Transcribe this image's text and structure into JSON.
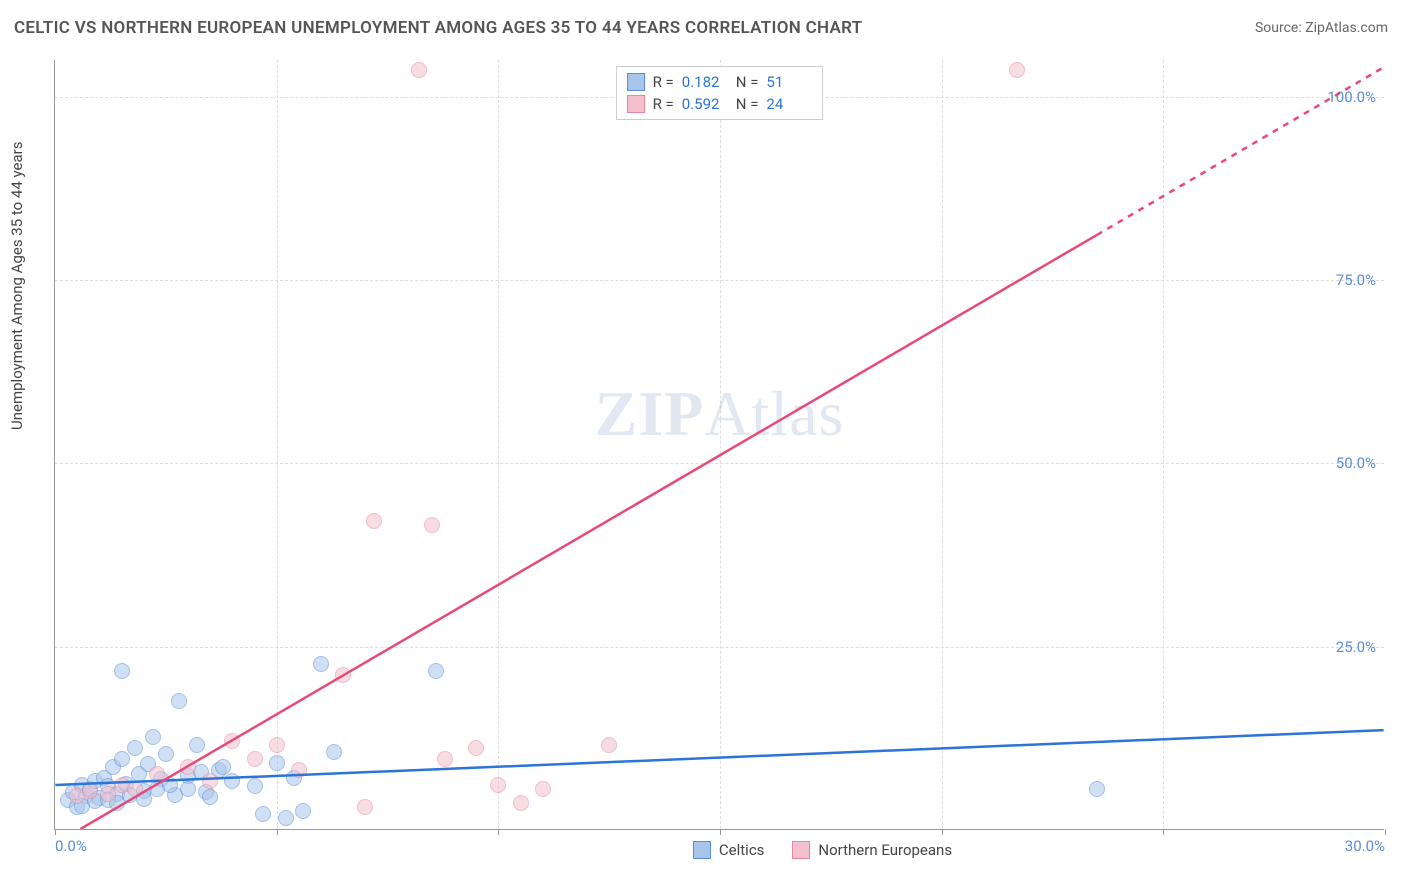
{
  "title": "CELTIC VS NORTHERN EUROPEAN UNEMPLOYMENT AMONG AGES 35 TO 44 YEARS CORRELATION CHART",
  "source": "Source: ZipAtlas.com",
  "y_axis_label": "Unemployment Among Ages 35 to 44 years",
  "watermark_a": "ZIP",
  "watermark_b": "Atlas",
  "chart": {
    "type": "scatter",
    "xlim": [
      0,
      30
    ],
    "ylim": [
      0,
      105
    ],
    "x_ticks": [
      0,
      30
    ],
    "x_tick_labels": [
      "0.0%",
      "30.0%"
    ],
    "y_ticks": [
      25,
      50,
      75,
      100
    ],
    "y_tick_labels": [
      "25.0%",
      "50.0%",
      "75.0%",
      "100.0%"
    ],
    "x_grid_positions": [
      5,
      10,
      15,
      20,
      25
    ],
    "background_color": "#ffffff",
    "grid_color": "#dddddd",
    "axis_color": "#999999",
    "tick_label_color": "#5b8dd6",
    "marker_radius": 8,
    "marker_opacity": 0.55,
    "series": [
      {
        "name": "Celtics",
        "color_fill": "#a8c6ec",
        "color_stroke": "#5b8dd6",
        "trend_color": "#2b74d8",
        "trend_width": 2.5,
        "trend_dash_tail": false,
        "R": "0.182",
        "N": "51",
        "trend_y_at_x0": 6.0,
        "trend_y_at_x30": 13.5,
        "points": [
          [
            0.3,
            4
          ],
          [
            0.4,
            5
          ],
          [
            0.5,
            3
          ],
          [
            0.6,
            6
          ],
          [
            0.7,
            4.5
          ],
          [
            0.8,
            5.5
          ],
          [
            0.9,
            6.5
          ],
          [
            1.0,
            4.2
          ],
          [
            1.1,
            7
          ],
          [
            1.2,
            5.8
          ],
          [
            1.3,
            8.5
          ],
          [
            1.4,
            4.8
          ],
          [
            1.5,
            9.5
          ],
          [
            1.6,
            6.2
          ],
          [
            1.8,
            11
          ],
          [
            1.9,
            7.5
          ],
          [
            2.0,
            5.2
          ],
          [
            2.1,
            8.8
          ],
          [
            2.2,
            12.5
          ],
          [
            2.4,
            6.8
          ],
          [
            2.5,
            10.2
          ],
          [
            2.7,
            4.6
          ],
          [
            2.8,
            17.5
          ],
          [
            3.0,
            7.2
          ],
          [
            3.2,
            11.5
          ],
          [
            3.4,
            5.0
          ],
          [
            1.5,
            21.5
          ],
          [
            3.7,
            8.0
          ],
          [
            4.0,
            6.5
          ],
          [
            0.6,
            3.2
          ],
          [
            0.9,
            3.8
          ],
          [
            1.2,
            4.0
          ],
          [
            1.4,
            3.5
          ],
          [
            1.7,
            4.6
          ],
          [
            2.0,
            4.1
          ],
          [
            2.3,
            5.5
          ],
          [
            2.6,
            6.0
          ],
          [
            3.0,
            5.4
          ],
          [
            3.3,
            7.8
          ],
          [
            3.5,
            4.3
          ],
          [
            3.8,
            8.5
          ],
          [
            4.5,
            5.8
          ],
          [
            4.7,
            2.0
          ],
          [
            5.0,
            9.0
          ],
          [
            5.4,
            7.0
          ],
          [
            5.6,
            2.5
          ],
          [
            6.0,
            22.5
          ],
          [
            6.3,
            10.5
          ],
          [
            8.6,
            21.5
          ],
          [
            5.2,
            1.5
          ],
          [
            23.5,
            5.5
          ]
        ]
      },
      {
        "name": "Northern Europeans",
        "color_fill": "#f4c0cd",
        "color_stroke": "#e3889f",
        "trend_color": "#e84a78",
        "trend_width": 2.5,
        "trend_dash_tail": true,
        "R": "0.592",
        "N": "24",
        "trend_y_at_x0": -2.0,
        "trend_y_at_x30": 104.0,
        "points": [
          [
            0.5,
            4.5
          ],
          [
            0.8,
            5.2
          ],
          [
            1.2,
            4.8
          ],
          [
            1.5,
            6.0
          ],
          [
            1.8,
            5.5
          ],
          [
            2.3,
            7.5
          ],
          [
            3.0,
            8.5
          ],
          [
            3.5,
            6.5
          ],
          [
            4.0,
            12.0
          ],
          [
            4.5,
            9.5
          ],
          [
            5.0,
            11.5
          ],
          [
            5.5,
            8.0
          ],
          [
            6.5,
            21.0
          ],
          [
            7.0,
            3.0
          ],
          [
            7.2,
            42.0
          ],
          [
            8.2,
            103.5
          ],
          [
            8.5,
            41.5
          ],
          [
            8.8,
            9.5
          ],
          [
            9.5,
            11.0
          ],
          [
            10.0,
            6.0
          ],
          [
            10.5,
            3.5
          ],
          [
            11.0,
            5.5
          ],
          [
            12.5,
            11.5
          ],
          [
            21.7,
            103.5
          ]
        ]
      }
    ]
  },
  "stats_box": {
    "r_label": "R  =",
    "n_label": "N  ="
  },
  "legend": {
    "series_a": "Celtics",
    "series_b": "Northern Europeans"
  }
}
